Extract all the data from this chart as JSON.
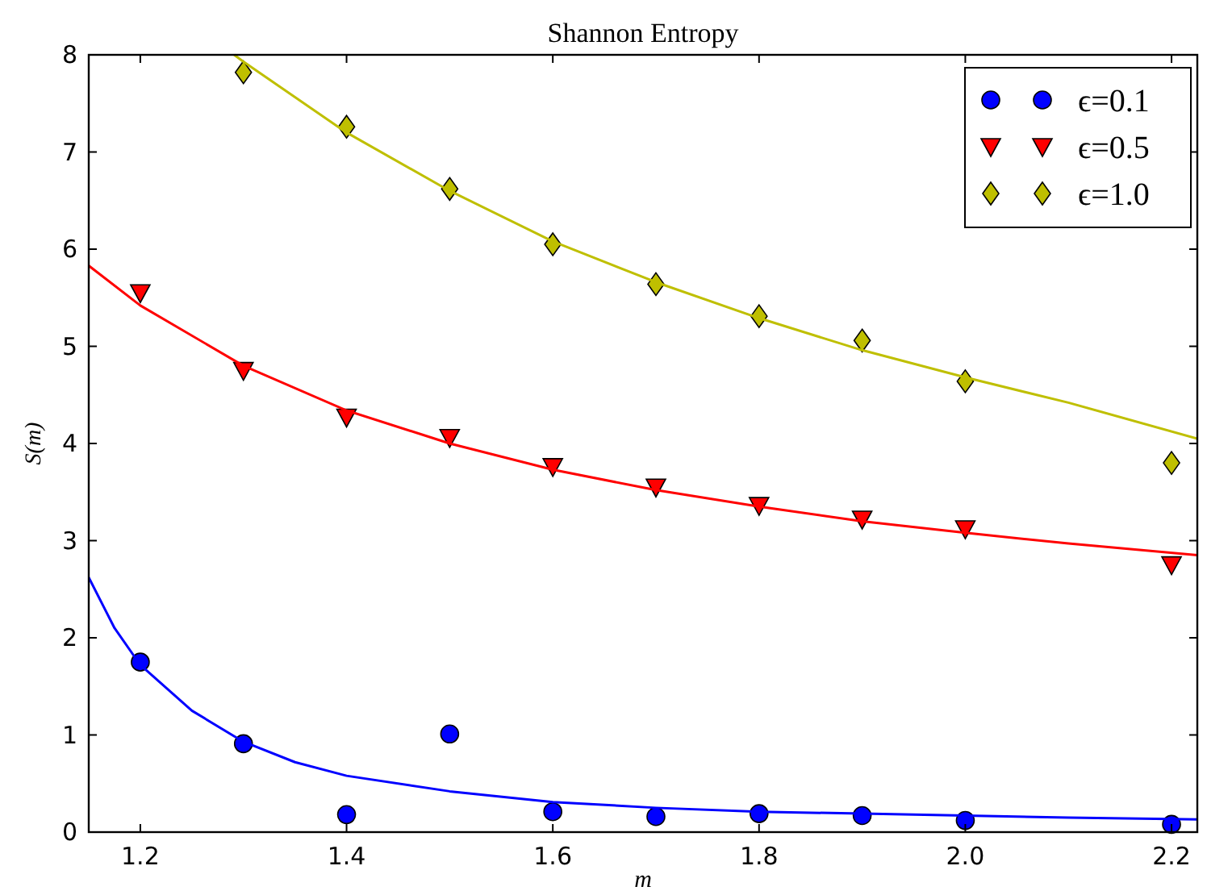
{
  "chart_data": {
    "type": "scatter",
    "title": "Shannon Entropy",
    "xlabel": "m",
    "ylabel": "S(m)",
    "xlim": [
      1.15,
      2.225
    ],
    "ylim": [
      0,
      8
    ],
    "xticks": [
      1.2,
      1.4,
      1.6,
      1.8,
      {
        "value": 2,
        "label": "2.0"
      },
      2.2
    ],
    "yticks": [
      0,
      1,
      2,
      3,
      4,
      5,
      6,
      7,
      8
    ],
    "grid": false,
    "legend": "top right",
    "series": [
      {
        "name": "ϵ=0.1",
        "color": "#0000ff",
        "marker": "circle",
        "x": [
          1.2,
          1.3,
          1.4,
          1.5,
          1.6,
          1.7,
          1.8,
          1.9,
          2.0,
          2.2
        ],
        "values": [
          1.75,
          0.91,
          0.18,
          1.01,
          0.21,
          0.16,
          0.19,
          0.17,
          0.12,
          0.08
        ]
      },
      {
        "name": "ϵ=0.5",
        "color": "#ff0000",
        "marker": "triangle",
        "x": [
          1.2,
          1.3,
          1.4,
          1.5,
          1.6,
          1.7,
          1.8,
          1.9,
          2.0,
          2.2
        ],
        "values": [
          5.55,
          4.75,
          4.27,
          4.06,
          3.76,
          3.55,
          3.36,
          3.22,
          3.12,
          2.75
        ]
      },
      {
        "name": "ϵ=1.0",
        "color": "#bfbf00",
        "marker": "diamond",
        "x": [
          1.3,
          1.4,
          1.5,
          1.6,
          1.7,
          1.8,
          1.9,
          2.0,
          2.2
        ],
        "values": [
          7.82,
          7.26,
          6.62,
          6.05,
          5.64,
          5.31,
          5.06,
          4.64,
          3.8
        ]
      },
      {
        "type": "line",
        "color": "#0000ff",
        "marker": "none",
        "line_style": "solid",
        "x": [
          1.15,
          1.175,
          1.2,
          1.25,
          1.3,
          1.35,
          1.4,
          1.5,
          1.6,
          1.7,
          1.8,
          1.9,
          2.0,
          2.1,
          2.225
        ],
        "values": [
          2.62,
          2.1,
          1.72,
          1.25,
          0.93,
          0.72,
          0.58,
          0.42,
          0.31,
          0.25,
          0.21,
          0.19,
          0.17,
          0.15,
          0.13
        ]
      },
      {
        "type": "line",
        "color": "#ff0000",
        "marker": "none",
        "line_style": "solid",
        "x": [
          1.15,
          1.2,
          1.3,
          1.4,
          1.5,
          1.6,
          1.7,
          1.8,
          1.9,
          2.0,
          2.1,
          2.225
        ],
        "values": [
          5.83,
          5.42,
          4.8,
          4.34,
          4.0,
          3.73,
          3.52,
          3.35,
          3.2,
          3.08,
          2.97,
          2.85
        ]
      },
      {
        "type": "line",
        "color": "#bfbf00",
        "marker": "none",
        "line_style": "solid",
        "x": [
          1.291,
          1.3,
          1.4,
          1.5,
          1.6,
          1.7,
          1.8,
          1.9,
          2.0,
          2.1,
          2.225
        ],
        "values": [
          8.0,
          7.93,
          7.2,
          6.6,
          6.08,
          5.66,
          5.29,
          4.96,
          4.68,
          4.42,
          4.05
        ]
      }
    ]
  }
}
